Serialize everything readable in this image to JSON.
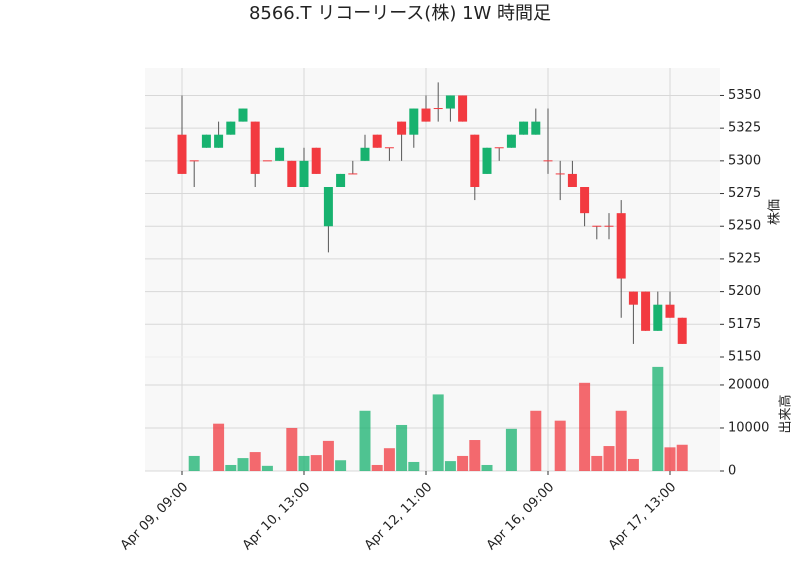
{
  "chart_data": {
    "type": "candlestick",
    "title": "8566.T リコーリース(株) 1W 時間足",
    "categories": [
      "Apr 09, 09:00",
      null,
      null,
      null,
      null,
      null,
      null,
      null,
      null,
      null,
      "Apr 10, 13:00",
      null,
      null,
      null,
      null,
      null,
      null,
      null,
      null,
      null,
      "Apr 12, 11:00",
      null,
      null,
      null,
      null,
      null,
      null,
      null,
      null,
      null,
      "Apr 16, 09:00",
      null,
      null,
      null,
      null,
      null,
      null,
      null,
      null,
      null,
      "Apr 17, 13:00",
      null
    ],
    "open": [
      5320,
      5300,
      5310,
      5310,
      5320,
      5330,
      5330,
      5300,
      5300,
      5300,
      5280,
      5310,
      5250,
      5280,
      5290,
      5300,
      5320,
      5310,
      5330,
      5320,
      5340,
      5340,
      5340,
      5350,
      5320,
      5290,
      5310,
      5310,
      5320,
      5320,
      5300,
      5290,
      5290,
      5280,
      5250,
      5250,
      5260,
      5200,
      5200,
      5170,
      5190,
      5180
    ],
    "high": [
      5350,
      5300,
      5320,
      5330,
      5330,
      5340,
      5330,
      5300,
      5310,
      5300,
      5310,
      5310,
      5280,
      5290,
      5300,
      5320,
      5320,
      5310,
      5330,
      5340,
      5350,
      5360,
      5350,
      5350,
      5320,
      5310,
      5310,
      5320,
      5330,
      5340,
      5340,
      5300,
      5300,
      5280,
      5250,
      5260,
      5270,
      5200,
      5200,
      5200,
      5200,
      5180
    ],
    "low": [
      5290,
      5280,
      5310,
      5310,
      5320,
      5330,
      5280,
      5300,
      5300,
      5280,
      5280,
      5290,
      5230,
      5280,
      5290,
      5300,
      5310,
      5300,
      5300,
      5310,
      5330,
      5330,
      5330,
      5330,
      5270,
      5290,
      5300,
      5310,
      5320,
      5320,
      5290,
      5270,
      5280,
      5250,
      5240,
      5240,
      5180,
      5160,
      5170,
      5170,
      5180,
      5160
    ],
    "close": [
      5290,
      5300,
      5320,
      5320,
      5330,
      5340,
      5290,
      5300,
      5310,
      5280,
      5300,
      5290,
      5280,
      5290,
      5290,
      5310,
      5310,
      5310,
      5320,
      5340,
      5330,
      5340,
      5350,
      5330,
      5280,
      5310,
      5310,
      5320,
      5330,
      5330,
      5300,
      5290,
      5280,
      5260,
      5250,
      5250,
      5210,
      5190,
      5170,
      5190,
      5180,
      5160
    ],
    "volume": [
      0,
      3500,
      0,
      11000,
      1400,
      3000,
      4400,
      1200,
      0,
      10000,
      3500,
      3700,
      7000,
      2500,
      0,
      14000,
      1400,
      5300,
      10700,
      2100,
      0,
      17800,
      2300,
      3500,
      7200,
      1400,
      0,
      9800,
      0,
      14000,
      0,
      11700,
      0,
      20500,
      3500,
      5800,
      14000,
      2800,
      0,
      24200,
      5500,
      6100
    ],
    "ylabel": "株価",
    "y2label": "出来高",
    "ylim": [
      5150,
      5371
    ],
    "yticks": [
      5150,
      5175,
      5200,
      5225,
      5250,
      5275,
      5300,
      5325,
      5350
    ],
    "y2lim": [
      0,
      26500
    ],
    "y2ticks": [
      0,
      10000,
      20000
    ],
    "up_color": "#17b26f",
    "down_color": "#f23a40",
    "grid": true
  }
}
